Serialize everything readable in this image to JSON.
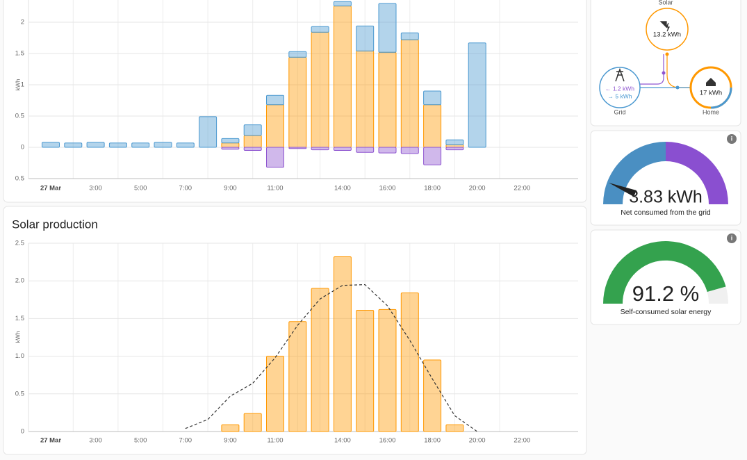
{
  "chart_data": [
    {
      "type": "bar",
      "stacked": true,
      "y_label": "kWh",
      "categories": [
        "27 Mar",
        null,
        "3:00",
        null,
        "5:00",
        null,
        "7:00",
        null,
        "9:00",
        null,
        "11:00",
        null,
        null,
        "14:00",
        null,
        "16:00",
        null,
        "18:00",
        null,
        "20:00",
        null,
        "22:00",
        null
      ],
      "series": [
        {
          "color": "#ff9800",
          "values": [
            0,
            0,
            0,
            0,
            0,
            0,
            0,
            0,
            0.07,
            0.19,
            0.68,
            1.44,
            1.84,
            2.26,
            1.54,
            1.52,
            1.72,
            0.68,
            0.04,
            0,
            null,
            null,
            null
          ]
        },
        {
          "color": "#4a98d0",
          "values": [
            0.08,
            0.07,
            0.08,
            0.07,
            0.07,
            0.08,
            0.07,
            0.49,
            0.07,
            0.17,
            0.15,
            0.09,
            0.09,
            0.07,
            0.4,
            0.78,
            0.11,
            0.22,
            0.08,
            1.67,
            null,
            null,
            null
          ]
        },
        {
          "color": "#8e55d0",
          "values": [
            0,
            0,
            0,
            0,
            0,
            0,
            0,
            0,
            -0.03,
            -0.05,
            -0.32,
            -0.02,
            -0.04,
            -0.05,
            -0.08,
            -0.09,
            -0.1,
            -0.28,
            -0.04,
            0,
            null,
            null,
            null
          ]
        }
      ],
      "ylim": [
        -0.5,
        2.4
      ],
      "yticks": [
        {
          "value": -0.5,
          "label": "0.5"
        },
        0,
        0.5,
        1,
        1.5,
        2
      ],
      "grid": true
    },
    {
      "type": "bar",
      "title": "Solar production",
      "y_label": "kWh",
      "categories": [
        "27 Mar",
        null,
        "3:00",
        null,
        "5:00",
        null,
        "7:00",
        null,
        "9:00",
        null,
        "11:00",
        null,
        null,
        "14:00",
        null,
        "16:00",
        null,
        "18:00",
        null,
        "20:00",
        null,
        "22:00",
        null
      ],
      "series": [
        {
          "color": "#ff9800",
          "values": [
            0,
            0,
            0,
            0,
            0,
            0,
            0,
            0,
            0.09,
            0.24,
            1.0,
            1.46,
            1.9,
            2.32,
            1.61,
            1.62,
            1.84,
            0.95,
            0.09,
            0,
            null,
            null,
            null
          ]
        },
        {
          "type": "line",
          "line_style": "dashed",
          "color": "#333333",
          "values": [
            null,
            null,
            null,
            null,
            null,
            null,
            0.04,
            0.16,
            0.47,
            0.64,
            0.98,
            1.41,
            1.76,
            1.94,
            1.95,
            1.67,
            1.21,
            0.7,
            0.21,
            0,
            null,
            null,
            null
          ]
        }
      ],
      "ylim": [
        0,
        2.5
      ],
      "yticks": [
        0,
        0.5,
        {
          "value": 1,
          "label": "1.0"
        },
        1.5,
        {
          "value": 2,
          "label": "2.0"
        },
        2.5
      ],
      "grid": true
    }
  ],
  "energy_distribution": {
    "solar": {
      "label": "Solar",
      "value": "13.2 kWh"
    },
    "grid": {
      "label": "Grid",
      "returned": "← 1.2 kWh",
      "consumed": "→ 5 kWh"
    },
    "home": {
      "label": "Home",
      "value": "17 kWh"
    }
  },
  "gauges": [
    {
      "value": "3.83 kWh",
      "label": "Net consumed from the grid"
    },
    {
      "value": "91.2 %",
      "label": "Self-consumed solar energy"
    }
  ]
}
